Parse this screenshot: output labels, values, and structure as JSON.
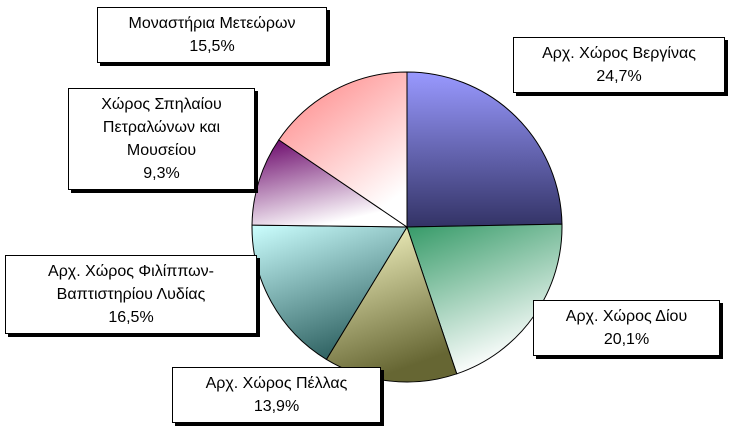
{
  "chart_data": {
    "type": "pie",
    "categories": [
      "Αρχ. Χώρος Βεργίνας",
      "Αρχ. Χώρος Δίου",
      "Αρχ. Χώρος Πέλλας",
      "Αρχ. Χώρος Φιλίππων-Βαπτιστηρίου Λυδίας",
      "Χώρος Σπηλαίου Πετραλώνων και Μουσείου",
      "Μοναστήρια Μετεώρων"
    ],
    "values": [
      24.7,
      20.1,
      13.9,
      16.5,
      9.3,
      15.5
    ],
    "value_labels": [
      "24,7%",
      "20,1%",
      "13,9%",
      "16,5%",
      "9,3%",
      "15,5%"
    ],
    "colors": [
      "#9999ff",
      "#339966",
      "#ffffcc",
      "#ccffff",
      "#660066",
      "#ff8080"
    ]
  }
}
